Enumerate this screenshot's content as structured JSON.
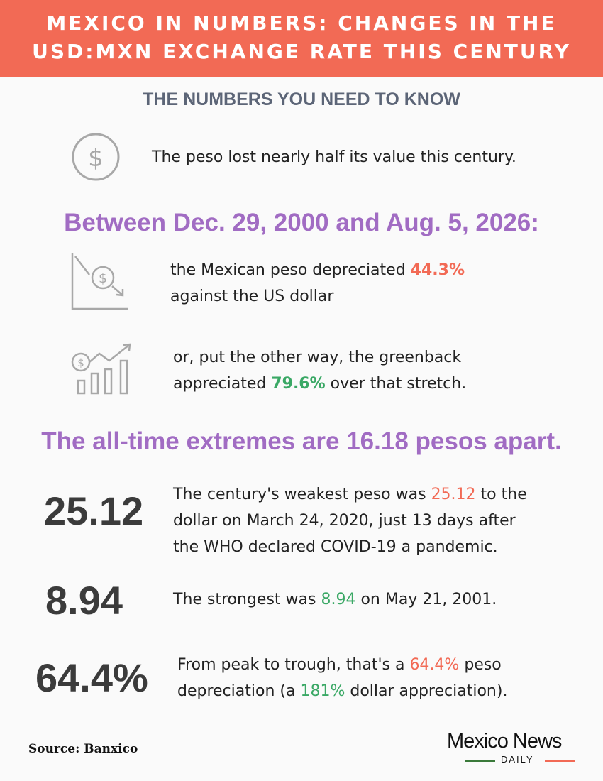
{
  "header": {
    "line1": "MEXICO IN NUMBERS: CHANGES IN THE",
    "line2": "USD:MXN EXCHANGE RATE THIS CENTURY"
  },
  "subhead": "THE NUMBERS YOU NEED TO KNOW",
  "fact1": {
    "icon": "dollar-circle-icon",
    "text": "The peso lost nearly half its value this century."
  },
  "range_heading": "Between Dec. 29, 2000 and Aug. 5, 2026:",
  "fact2": {
    "icon": "declining-dollar-chart-icon",
    "pre": "the Mexican peso depreciated ",
    "value": "44.3%",
    "post": "against the US dollar"
  },
  "fact3": {
    "icon": "rising-dollar-bar-chart-icon",
    "pre": "or, put the other way, the greenback",
    "pre2": "appreciated ",
    "value": "79.6%",
    "post": " over that stretch."
  },
  "extremes_heading": "The all-time extremes are 16.18 pesos apart.",
  "stat1": {
    "big": "25.12",
    "l1a": "The century's weakest peso was ",
    "l1v": "25.12",
    "l1b": " to the",
    "l2": "dollar on March 24, 2020, just 13 days after",
    "l3": "the WHO declared COVID-19 a pandemic."
  },
  "stat2": {
    "big": "8.94",
    "a": "The strongest was ",
    "v": "8.94",
    "b": " on May 21, 2001."
  },
  "stat3": {
    "big": "64.4%",
    "l1a": "From peak to trough, that's a ",
    "l1v": "64.4%",
    "l1b": " peso",
    "l2a": "depreciation (a ",
    "l2v": "181%",
    "l2b": " dollar appreciation)."
  },
  "source": "Source: Banxico",
  "logo": {
    "name": "Mexico News",
    "sub": "DAILY"
  },
  "colors": {
    "header": "#f26a55",
    "purple": "#a16cc3",
    "red": "#f26a55",
    "green": "#3aa865"
  }
}
